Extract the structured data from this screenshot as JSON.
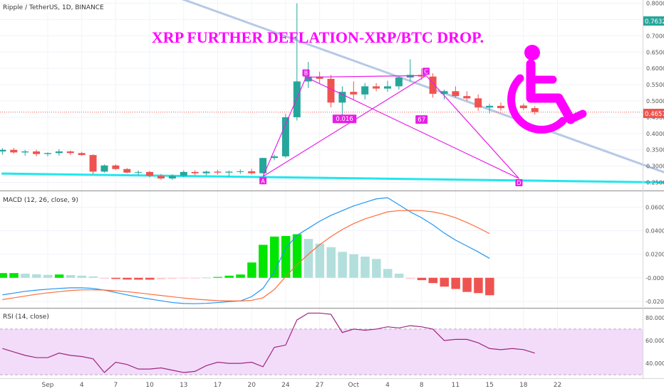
{
  "header": {
    "symbol_line": "Ripple / TetherUS, 1D, BINANCE"
  },
  "annotation": {
    "headline": "XRP FURTHER DEFLATION-XRP/BTC DROP."
  },
  "price_labels": {
    "current": "0.76325",
    "last": "0.46570"
  },
  "colors": {
    "up": "#26a69a",
    "down": "#ef5350",
    "pattern": "#e81ee8",
    "support": "#22e6ee",
    "resistance": "#b7c9e6",
    "macd_line": "#2196f3",
    "signal_line": "#ff6d3a",
    "rsi_line": "#a0267f",
    "rsi_band": "#f2dcfa",
    "wheelchair": "#ff00ff",
    "hist_up_strong": "#00e600",
    "hist_up_weak": "#b2dfdb",
    "hist_down_strong": "#ef5350",
    "hist_down_weak": "#ffcdd2"
  },
  "icons": {
    "wheelchair": "wheelchair-icon"
  },
  "chart_data": [
    {
      "type": "candlestick",
      "title": "Ripple / TetherUS, 1D, BINANCE",
      "x_ticks": [
        "Sep",
        "4",
        "7",
        "10",
        "13",
        "17",
        "20",
        "24",
        "27",
        "Oct",
        "4",
        "8",
        "11",
        "15",
        "18",
        "22"
      ],
      "x_tick_index": [
        0,
        3,
        6,
        9,
        12,
        15,
        18,
        21,
        24,
        27,
        30,
        33,
        36,
        39,
        42,
        45
      ],
      "ylim": [
        0.225,
        0.81
      ],
      "y_ticks": [
        "0.25000",
        "0.30000",
        "0.35000",
        "0.40000",
        "0.45000",
        "0.50000",
        "0.55000",
        "0.60000",
        "0.65000",
        "0.70000",
        "0.75000",
        "0.80000"
      ],
      "y_tick_values": [
        0.25,
        0.3,
        0.35,
        0.4,
        0.45,
        0.5,
        0.55,
        0.6,
        0.65,
        0.7,
        0.75,
        0.8
      ],
      "candles": [
        {
          "i": -4,
          "o": 0.345,
          "h": 0.355,
          "l": 0.335,
          "c": 0.35
        },
        {
          "i": -3,
          "o": 0.35,
          "h": 0.356,
          "l": 0.338,
          "c": 0.342
        },
        {
          "i": -2,
          "o": 0.342,
          "h": 0.35,
          "l": 0.332,
          "c": 0.345
        },
        {
          "i": -1,
          "o": 0.345,
          "h": 0.35,
          "l": 0.33,
          "c": 0.337
        },
        {
          "i": 0,
          "o": 0.337,
          "h": 0.342,
          "l": 0.33,
          "c": 0.34
        },
        {
          "i": 1,
          "o": 0.34,
          "h": 0.352,
          "l": 0.332,
          "c": 0.345
        },
        {
          "i": 2,
          "o": 0.345,
          "h": 0.348,
          "l": 0.334,
          "c": 0.34
        },
        {
          "i": 3,
          "o": 0.34,
          "h": 0.344,
          "l": 0.332,
          "c": 0.334
        },
        {
          "i": 4,
          "o": 0.334,
          "h": 0.336,
          "l": 0.275,
          "c": 0.283
        },
        {
          "i": 5,
          "o": 0.283,
          "h": 0.305,
          "l": 0.28,
          "c": 0.302
        },
        {
          "i": 6,
          "o": 0.302,
          "h": 0.305,
          "l": 0.288,
          "c": 0.291
        },
        {
          "i": 7,
          "o": 0.291,
          "h": 0.294,
          "l": 0.278,
          "c": 0.28
        },
        {
          "i": 8,
          "o": 0.28,
          "h": 0.287,
          "l": 0.272,
          "c": 0.282
        },
        {
          "i": 9,
          "o": 0.282,
          "h": 0.285,
          "l": 0.265,
          "c": 0.27
        },
        {
          "i": 10,
          "o": 0.27,
          "h": 0.276,
          "l": 0.258,
          "c": 0.262
        },
        {
          "i": 11,
          "o": 0.262,
          "h": 0.275,
          "l": 0.258,
          "c": 0.27
        },
        {
          "i": 12,
          "o": 0.27,
          "h": 0.287,
          "l": 0.266,
          "c": 0.282
        },
        {
          "i": 13,
          "o": 0.282,
          "h": 0.287,
          "l": 0.272,
          "c": 0.278
        },
        {
          "i": 14,
          "o": 0.278,
          "h": 0.286,
          "l": 0.272,
          "c": 0.283
        },
        {
          "i": 15,
          "o": 0.283,
          "h": 0.288,
          "l": 0.274,
          "c": 0.28
        },
        {
          "i": 16,
          "o": 0.28,
          "h": 0.286,
          "l": 0.268,
          "c": 0.283
        },
        {
          "i": 17,
          "o": 0.283,
          "h": 0.29,
          "l": 0.276,
          "c": 0.284
        },
        {
          "i": 18,
          "o": 0.284,
          "h": 0.292,
          "l": 0.274,
          "c": 0.278
        },
        {
          "i": 19,
          "o": 0.278,
          "h": 0.325,
          "l": 0.276,
          "c": 0.325
        },
        {
          "i": 20,
          "o": 0.325,
          "h": 0.335,
          "l": 0.318,
          "c": 0.33
        },
        {
          "i": 21,
          "o": 0.33,
          "h": 0.46,
          "l": 0.325,
          "c": 0.45
        },
        {
          "i": 22,
          "o": 0.45,
          "h": 0.8,
          "l": 0.44,
          "c": 0.56
        },
        {
          "i": 23,
          "o": 0.56,
          "h": 0.62,
          "l": 0.54,
          "c": 0.575
        },
        {
          "i": 24,
          "o": 0.575,
          "h": 0.59,
          "l": 0.555,
          "c": 0.568
        },
        {
          "i": 25,
          "o": 0.568,
          "h": 0.58,
          "l": 0.48,
          "c": 0.495
        },
        {
          "i": 26,
          "o": 0.495,
          "h": 0.545,
          "l": 0.455,
          "c": 0.528
        },
        {
          "i": 27,
          "o": 0.528,
          "h": 0.56,
          "l": 0.505,
          "c": 0.52
        },
        {
          "i": 28,
          "o": 0.52,
          "h": 0.555,
          "l": 0.505,
          "c": 0.545
        },
        {
          "i": 29,
          "o": 0.545,
          "h": 0.555,
          "l": 0.53,
          "c": 0.538
        },
        {
          "i": 30,
          "o": 0.538,
          "h": 0.562,
          "l": 0.528,
          "c": 0.545
        },
        {
          "i": 31,
          "o": 0.545,
          "h": 0.575,
          "l": 0.535,
          "c": 0.572
        },
        {
          "i": 32,
          "o": 0.572,
          "h": 0.628,
          "l": 0.56,
          "c": 0.58
        },
        {
          "i": 33,
          "o": 0.58,
          "h": 0.6,
          "l": 0.565,
          "c": 0.575
        },
        {
          "i": 34,
          "o": 0.575,
          "h": 0.585,
          "l": 0.51,
          "c": 0.522
        },
        {
          "i": 35,
          "o": 0.522,
          "h": 0.535,
          "l": 0.505,
          "c": 0.53
        },
        {
          "i": 36,
          "o": 0.53,
          "h": 0.545,
          "l": 0.51,
          "c": 0.515
        },
        {
          "i": 37,
          "o": 0.515,
          "h": 0.53,
          "l": 0.5,
          "c": 0.508
        },
        {
          "i": 38,
          "o": 0.508,
          "h": 0.52,
          "l": 0.47,
          "c": 0.48
        },
        {
          "i": 39,
          "o": 0.48,
          "h": 0.492,
          "l": 0.462,
          "c": 0.485
        },
        {
          "i": 40,
          "o": 0.485,
          "h": 0.495,
          "l": 0.47,
          "c": 0.478
        },
        {
          "i": 41,
          "o": 0.478,
          "h": 0.49,
          "l": 0.468,
          "c": 0.486
        },
        {
          "i": 42,
          "o": 0.486,
          "h": 0.492,
          "l": 0.472,
          "c": 0.478
        },
        {
          "i": 43,
          "o": 0.478,
          "h": 0.484,
          "l": 0.458,
          "c": 0.466
        }
      ],
      "pattern": {
        "points": [
          {
            "label": "A",
            "i": 19.0,
            "y": 0.268
          },
          {
            "label": "B",
            "i": 22.8,
            "y": 0.573
          },
          {
            "label": "C",
            "i": 33.4,
            "y": 0.578
          },
          {
            "label": "D",
            "i": 41.6,
            "y": 0.262
          }
        ],
        "ratio_labels": [
          {
            "text": "0.016",
            "i": 26.2,
            "y": 0.445
          },
          {
            "text": "67",
            "i": 33.0,
            "y": 0.443
          }
        ]
      },
      "lines": [
        {
          "name": "support",
          "x0": -4,
          "y0": 0.277,
          "x1": 54.5,
          "y1": 0.25
        },
        {
          "name": "resistance",
          "x0": 4.5,
          "y0": 0.905,
          "x1": 54.5,
          "y1": 0.28
        }
      ],
      "last_price": 0.4657
    },
    {
      "type": "macd",
      "title": "MACD (12, 26, close, 9)",
      "ylim": [
        -0.0255,
        0.0735
      ],
      "y_ticks": [
        "-0.0200",
        "-0.0000",
        "0.0200",
        "0.0400",
        "0.0600"
      ],
      "y_tick_values": [
        -0.02,
        0.0,
        0.02,
        0.04,
        0.06
      ],
      "histogram": [
        0.004,
        0.004,
        0.0035,
        0.003,
        0.0025,
        0.0028,
        0.0023,
        0.0018,
        0.0012,
        -0.0008,
        -0.001,
        -0.0015,
        -0.0016,
        -0.0016,
        -0.0013,
        -0.0009,
        -0.0006,
        -0.0004,
        0.0002,
        0.0007,
        0.0018,
        0.0028,
        0.013,
        0.028,
        0.035,
        0.0355,
        0.037,
        0.033,
        0.029,
        0.026,
        0.022,
        0.02,
        0.018,
        0.016,
        0.0075,
        0.0035,
        -0.001,
        -0.002,
        -0.0045,
        -0.0075,
        -0.0095,
        -0.012,
        -0.013,
        -0.0148
      ],
      "macd": [
        -0.0145,
        -0.013,
        -0.0115,
        -0.0105,
        -0.0097,
        -0.009,
        -0.0085,
        -0.0085,
        -0.009,
        -0.0105,
        -0.0125,
        -0.0145,
        -0.0165,
        -0.018,
        -0.0195,
        -0.021,
        -0.0218,
        -0.022,
        -0.0217,
        -0.021,
        -0.0202,
        -0.0197,
        -0.016,
        -0.009,
        0.005,
        0.025,
        0.036,
        0.042,
        0.048,
        0.053,
        0.057,
        0.061,
        0.064,
        0.067,
        0.068,
        0.062,
        0.056,
        0.051,
        0.045,
        0.038,
        0.032,
        0.027,
        0.022,
        0.0165
      ],
      "signal": [
        -0.0185,
        -0.017,
        -0.0155,
        -0.014,
        -0.0128,
        -0.0118,
        -0.0108,
        -0.0103,
        -0.0102,
        -0.0104,
        -0.011,
        -0.0118,
        -0.0128,
        -0.0139,
        -0.015,
        -0.0161,
        -0.0172,
        -0.0181,
        -0.0188,
        -0.0194,
        -0.0196,
        -0.0197,
        -0.0192,
        -0.017,
        -0.01,
        0.001,
        0.011,
        0.02,
        0.028,
        0.035,
        0.041,
        0.046,
        0.05,
        0.053,
        0.056,
        0.057,
        0.0572,
        0.057,
        0.056,
        0.054,
        0.051,
        0.047,
        0.0425,
        0.0375
      ]
    },
    {
      "type": "line",
      "title": "RSI (14, close)",
      "ylim": [
        27,
        88
      ],
      "y_ticks": [
        "40.0000",
        "60.0000",
        "80.0000"
      ],
      "y_tick_values": [
        40,
        60,
        80
      ],
      "band": [
        30,
        70
      ],
      "values": [
        53,
        50,
        47,
        45,
        45,
        49,
        47,
        46,
        44,
        32,
        41,
        39,
        35,
        35,
        36,
        34,
        32,
        33,
        38,
        41,
        40,
        40,
        41,
        37,
        54,
        56,
        78,
        84,
        84,
        83,
        67,
        70,
        69,
        70,
        72,
        71,
        73,
        72,
        70,
        60,
        61,
        61,
        58,
        53,
        52,
        53,
        52,
        49
      ]
    }
  ]
}
